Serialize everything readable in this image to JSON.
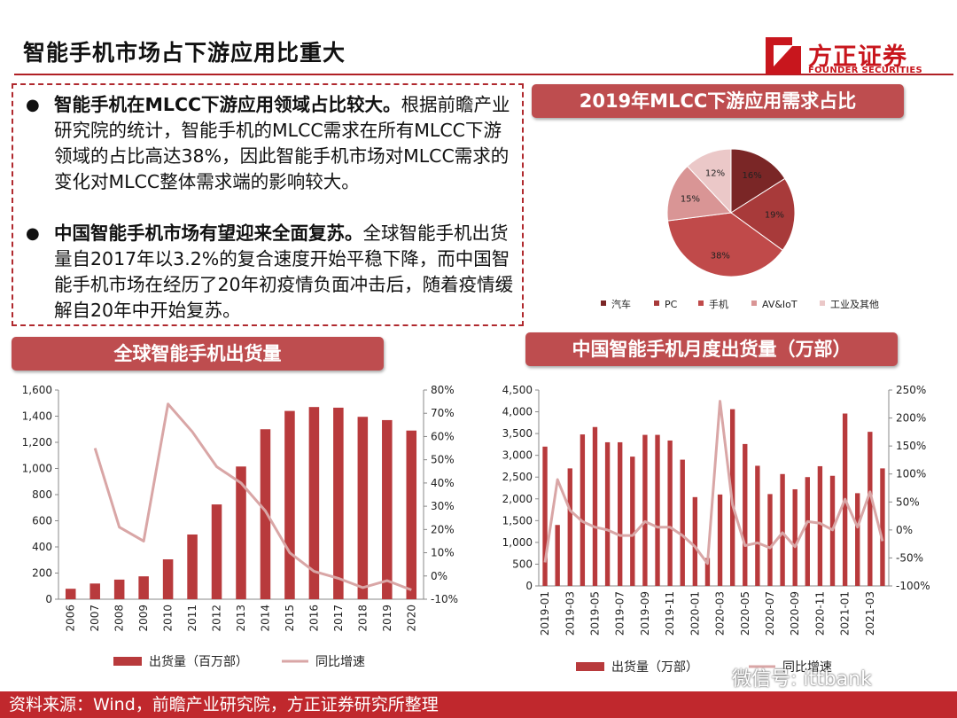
{
  "page": {
    "title": "智能手机市场占下游应用比重大",
    "logo_cn": "方正证券",
    "logo_en": "FOUNDER SECURITIES",
    "source": "资料来源：Wind，前瞻产业研究院，方正证券研究所整理",
    "watermark": "微信号: ittbank"
  },
  "bullets": [
    {
      "bold": "智能手机在MLCC下游应用领域占比较大。",
      "text": "根据前瞻产业研究院的统计，智能手机的MLCC需求在所有MLCC下游领域的占比高达38%，因此智能手机市场对MLCC需求的变化对MLCC整体需求端的影响较大。"
    },
    {
      "bold": "中国智能手机市场有望迎来全面复苏。",
      "text": "全球智能手机出货量自2017年以3.2%的复合速度开始平稳下降，而中国智能手机市场在经历了20年初疫情负面冲击后，随着疫情缓解自20年中开始复苏。"
    }
  ],
  "chart_data": [
    {
      "type": "pie",
      "title": "2019年MLCC下游应用需求占比",
      "categories": [
        "汽车",
        "PC",
        "手机",
        "AV&IoT",
        "工业及其他"
      ],
      "values": [
        16,
        19,
        38,
        15,
        12
      ],
      "labels": [
        "16%",
        "19%",
        "38%",
        "15%",
        "12%"
      ],
      "colors": [
        "#7a2626",
        "#a83a3a",
        "#c04a4a",
        "#d99595",
        "#ebc8c8"
      ],
      "legend": "bottom"
    },
    {
      "type": "bar",
      "title": "全球智能手机出货量",
      "categories": [
        "2006",
        "2007",
        "2008",
        "2009",
        "2010",
        "2011",
        "2012",
        "2013",
        "2014",
        "2015",
        "2016",
        "2017",
        "2018",
        "2019",
        "2020"
      ],
      "series": [
        {
          "name": "出货量（百万部）",
          "type": "bar",
          "axis": "left",
          "color": "#b83a3c",
          "values": [
            80,
            120,
            150,
            175,
            305,
            495,
            725,
            1015,
            1300,
            1440,
            1470,
            1465,
            1395,
            1370,
            1290
          ]
        },
        {
          "name": "同比增速",
          "type": "line",
          "axis": "right",
          "color": "#d9a6a6",
          "values": [
            null,
            55,
            21,
            15,
            74,
            62,
            47,
            40,
            28,
            10,
            2,
            -1,
            -5,
            -2,
            -6
          ]
        }
      ],
      "left_axis": {
        "min": 0,
        "max": 1600,
        "ticks": [
          "0",
          "200",
          "400",
          "600",
          "800",
          "1,000",
          "1,200",
          "1,400",
          "1,600"
        ]
      },
      "right_axis": {
        "min": -10,
        "max": 80,
        "ticks": [
          "-10%",
          "0%",
          "10%",
          "20%",
          "30%",
          "40%",
          "50%",
          "60%",
          "70%",
          "80%"
        ]
      },
      "legend": "bottom"
    },
    {
      "type": "bar",
      "title": "中国智能手机月度出货量（万部）",
      "categories": [
        "2019-01",
        "2019-02",
        "2019-03",
        "2019-04",
        "2019-05",
        "2019-06",
        "2019-07",
        "2019-08",
        "2019-09",
        "2019-10",
        "2019-11",
        "2019-12",
        "2020-01",
        "2020-02",
        "2020-03",
        "2020-04",
        "2020-05",
        "2020-06",
        "2020-07",
        "2020-08",
        "2020-09",
        "2020-10",
        "2020-11",
        "2020-12",
        "2021-01",
        "2021-02",
        "2021-03",
        "2021-04"
      ],
      "x_tick_labels": [
        "2019-01",
        "2019-03",
        "2019-05",
        "2019-07",
        "2019-09",
        "2019-11",
        "2020-01",
        "2020-03",
        "2020-05",
        "2020-07",
        "2020-09",
        "2020-11",
        "2021-01",
        "2021-03"
      ],
      "series": [
        {
          "name": "出货量（万部）",
          "type": "bar",
          "axis": "left",
          "color": "#b83a3c",
          "values": [
            3200,
            1400,
            2700,
            3480,
            3650,
            3300,
            3300,
            2970,
            3470,
            3470,
            3340,
            2900,
            2040,
            640,
            2100,
            4060,
            3260,
            2760,
            2110,
            2570,
            2220,
            2500,
            2750,
            2530,
            3960,
            2130,
            3540,
            2700
          ]
        },
        {
          "name": "同比增速",
          "type": "line",
          "axis": "right",
          "color": "#d9a6a6",
          "values": [
            -58,
            90,
            35,
            15,
            5,
            0,
            -10,
            -10,
            15,
            5,
            5,
            -10,
            -30,
            -60,
            230,
            45,
            -28,
            -23,
            -32,
            -5,
            -30,
            15,
            12,
            0,
            55,
            5,
            68,
            -20
          ]
        }
      ],
      "left_axis": {
        "min": 0,
        "max": 4500,
        "ticks": [
          "0",
          "500",
          "1,000",
          "1,500",
          "2,000",
          "2,500",
          "3,000",
          "3,500",
          "4,000",
          "4,500"
        ]
      },
      "right_axis": {
        "min": -100,
        "max": 250,
        "ticks": [
          "-100%",
          "-50%",
          "0%",
          "50%",
          "100%",
          "150%",
          "200%",
          "250%"
        ]
      },
      "legend": "bottom"
    }
  ]
}
